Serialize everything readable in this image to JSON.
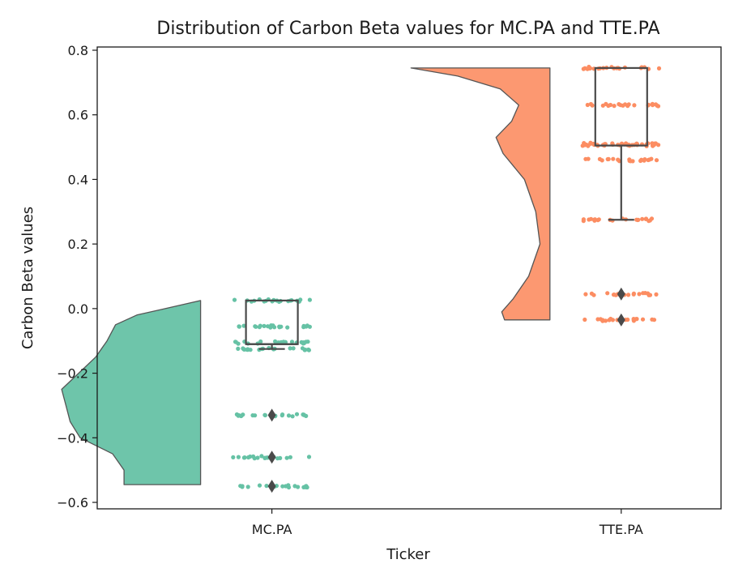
{
  "chart_data": {
    "type": "raincloud",
    "title": "Distribution of Carbon Beta values for MC.PA and TTE.PA",
    "xlabel": "Ticker",
    "ylabel": "Carbon Beta values",
    "ylim": [
      -0.62,
      0.81
    ],
    "yticks": [
      0.8,
      0.6,
      0.4,
      0.2,
      0.0,
      -0.2,
      -0.4,
      -0.6
    ],
    "ytick_labels": [
      "0.8",
      "0.6",
      "0.4",
      "0.2",
      "0.0",
      "−0.2",
      "−0.4",
      "−0.6"
    ],
    "categories": [
      "MC.PA",
      "TTE.PA"
    ],
    "grid": false,
    "series": [
      {
        "category": "MC.PA",
        "color": "#66c2a5",
        "box": {
          "q1": -0.11,
          "median": -0.11,
          "q3": 0.025,
          "whisker_low": -0.125,
          "whisker_high": 0.025
        },
        "outliers": [
          -0.33,
          -0.46,
          -0.55
        ],
        "strip_values": [
          0.025,
          -0.055,
          -0.105,
          -0.125,
          -0.33,
          -0.46,
          -0.55
        ],
        "density": [
          {
            "y": 0.025,
            "d": 0.0
          },
          {
            "y": 0.0,
            "d": 0.25
          },
          {
            "y": -0.02,
            "d": 0.45
          },
          {
            "y": -0.05,
            "d": 0.6
          },
          {
            "y": -0.1,
            "d": 0.66
          },
          {
            "y": -0.15,
            "d": 0.74
          },
          {
            "y": -0.2,
            "d": 0.86
          },
          {
            "y": -0.25,
            "d": 0.98
          },
          {
            "y": -0.3,
            "d": 0.95
          },
          {
            "y": -0.35,
            "d": 0.92
          },
          {
            "y": -0.4,
            "d": 0.85
          },
          {
            "y": -0.45,
            "d": 0.62
          },
          {
            "y": -0.5,
            "d": 0.54
          },
          {
            "y": -0.545,
            "d": 0.54
          }
        ]
      },
      {
        "category": "TTE.PA",
        "color": "#fc8d62",
        "box": {
          "q1": 0.505,
          "median": 0.505,
          "q3": 0.745,
          "whisker_low": 0.275,
          "whisker_high": 0.745
        },
        "outliers": [
          0.045,
          -0.035
        ],
        "strip_values": [
          0.745,
          0.63,
          0.51,
          0.505,
          0.46,
          0.275,
          0.045,
          -0.035
        ],
        "density": [
          {
            "y": 0.745,
            "d": 0.98
          },
          {
            "y": 0.72,
            "d": 0.65
          },
          {
            "y": 0.68,
            "d": 0.35
          },
          {
            "y": 0.63,
            "d": 0.22
          },
          {
            "y": 0.58,
            "d": 0.27
          },
          {
            "y": 0.53,
            "d": 0.38
          },
          {
            "y": 0.48,
            "d": 0.33
          },
          {
            "y": 0.4,
            "d": 0.18
          },
          {
            "y": 0.3,
            "d": 0.1
          },
          {
            "y": 0.2,
            "d": 0.07
          },
          {
            "y": 0.1,
            "d": 0.15
          },
          {
            "y": 0.03,
            "d": 0.26
          },
          {
            "y": -0.01,
            "d": 0.34
          },
          {
            "y": -0.035,
            "d": 0.32
          }
        ]
      }
    ]
  }
}
